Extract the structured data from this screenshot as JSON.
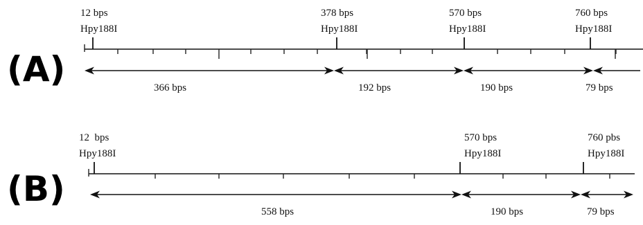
{
  "panels": [
    {
      "label": "(A)",
      "sites": [
        {
          "pos": "12 bps",
          "enzyme": "Hpy188I"
        },
        {
          "pos": "378 bps",
          "enzyme": "Hpy188I"
        },
        {
          "pos": "570 bps",
          "enzyme": "Hpy188I"
        },
        {
          "pos": "760 bps",
          "enzyme": "Hpy188I"
        }
      ],
      "fragments": [
        "366 bps",
        "192 bps",
        "190 bps",
        "79 bps"
      ]
    },
    {
      "label": "(B)",
      "sites": [
        {
          "pos": "12  bps",
          "enzyme": "Hpy188I"
        },
        {
          "pos": "570 bps",
          "enzyme": "Hpy188I"
        },
        {
          "pos": "760 pbs",
          "enzyme": "Hpy188I"
        }
      ],
      "fragments": [
        "558 bps",
        "190 bps",
        "79 bps"
      ]
    }
  ]
}
